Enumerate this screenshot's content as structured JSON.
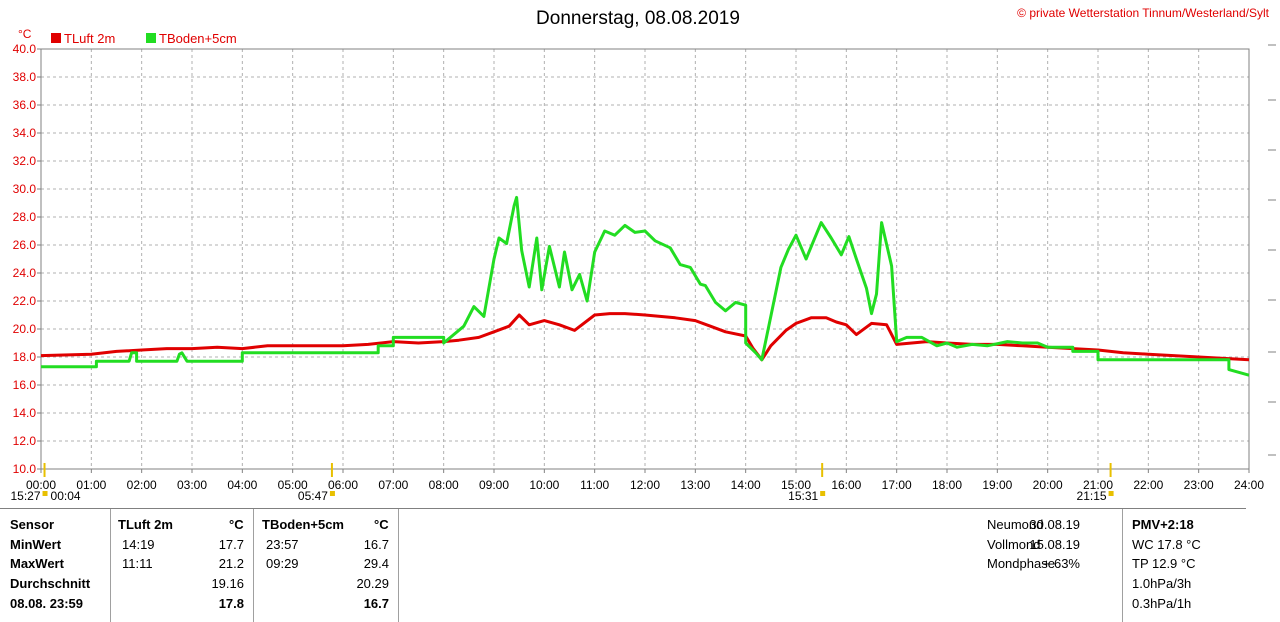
{
  "chart_data": {
    "type": "line",
    "title": "Donnerstag, 08.08.2019",
    "copyright": "© private Wetterstation Tinnum/Westerland/Sylt",
    "ylabel": "°C",
    "ylim": [
      10.0,
      40.0
    ],
    "yticks": [
      "10.0",
      "12.0",
      "14.0",
      "16.0",
      "18.0",
      "20.0",
      "22.0",
      "24.0",
      "26.0",
      "28.0",
      "30.0",
      "32.0",
      "34.0",
      "36.0",
      "38.0",
      "40.0"
    ],
    "xlim": [
      0,
      24
    ],
    "xticks": [
      "00:00",
      "01:00",
      "02:00",
      "03:00",
      "04:00",
      "05:00",
      "06:00",
      "07:00",
      "08:00",
      "09:00",
      "10:00",
      "11:00",
      "12:00",
      "13:00",
      "14:00",
      "15:00",
      "16:00",
      "17:00",
      "18:00",
      "19:00",
      "20:00",
      "21:00",
      "22:00",
      "23:00",
      "24:00"
    ],
    "grid": true,
    "legend_position": "top-left",
    "series": [
      {
        "name": "TLuft 2m",
        "color": "#e00000",
        "x": [
          0,
          1,
          1.5,
          2,
          2.5,
          3,
          3.5,
          4,
          4.5,
          5,
          5.5,
          6,
          6.5,
          7,
          7.5,
          8,
          8.3,
          8.7,
          9,
          9.3,
          9.5,
          9.7,
          10,
          10.3,
          10.6,
          11,
          11.3,
          11.6,
          12,
          12.3,
          12.6,
          13,
          13.3,
          13.6,
          14,
          14.15,
          14.32,
          14.5,
          14.8,
          15,
          15.3,
          15.6,
          15.8,
          16,
          16.2,
          16.5,
          16.8,
          17,
          17.3,
          17.6,
          18,
          18.5,
          19,
          19.5,
          20,
          20.5,
          21,
          21.5,
          22,
          22.5,
          23,
          23.5,
          24
        ],
        "y": [
          18.1,
          18.2,
          18.4,
          18.5,
          18.6,
          18.6,
          18.7,
          18.6,
          18.8,
          18.8,
          18.8,
          18.8,
          18.9,
          19.1,
          19.0,
          19.1,
          19.2,
          19.4,
          19.8,
          20.2,
          21.0,
          20.3,
          20.6,
          20.3,
          19.9,
          21.0,
          21.1,
          21.1,
          21.0,
          20.9,
          20.8,
          20.6,
          20.2,
          19.8,
          19.5,
          18.6,
          17.8,
          18.8,
          19.9,
          20.4,
          20.8,
          20.8,
          20.5,
          20.3,
          19.6,
          20.4,
          20.3,
          18.9,
          19.0,
          19.1,
          19.0,
          18.9,
          18.9,
          18.8,
          18.7,
          18.6,
          18.5,
          18.3,
          18.2,
          18.1,
          18.0,
          17.9,
          17.8
        ]
      },
      {
        "name": "TBoden+5cm",
        "color": "#22dd22",
        "x": [
          0,
          1.1,
          1.1,
          1.75,
          1.8,
          1.9,
          1.9,
          2.7,
          2.75,
          2.8,
          2.9,
          2.95,
          4.0,
          4.0,
          6.7,
          6.7,
          7.0,
          7.0,
          7.3,
          7.3,
          8.0,
          8.0,
          8.4,
          8.6,
          8.8,
          9.0,
          9.1,
          9.25,
          9.4,
          9.45,
          9.55,
          9.7,
          9.85,
          9.95,
          10.1,
          10.3,
          10.4,
          10.55,
          10.7,
          10.85,
          11.0,
          11.2,
          11.4,
          11.6,
          11.8,
          12.0,
          12.2,
          12.5,
          12.7,
          12.9,
          13.1,
          13.2,
          13.4,
          13.6,
          13.8,
          14.0,
          14.0,
          14.2,
          14.32,
          14.5,
          14.7,
          14.85,
          15.0,
          15.2,
          15.35,
          15.5,
          15.7,
          15.9,
          16.05,
          16.2,
          16.4,
          16.5,
          16.6,
          16.7,
          16.9,
          17.0,
          17.2,
          17.5,
          17.8,
          18.0,
          18.2,
          18.5,
          18.8,
          19.2,
          19.5,
          19.8,
          20.0,
          20.5,
          20.5,
          21.0,
          21.0,
          21.3,
          21.3,
          23.6,
          23.6,
          24.0
        ],
        "y": [
          17.3,
          17.3,
          17.7,
          17.7,
          18.3,
          18.3,
          17.7,
          17.7,
          18.2,
          18.3,
          17.7,
          17.7,
          17.7,
          18.3,
          18.3,
          18.8,
          18.8,
          19.4,
          19.4,
          19.4,
          19.4,
          19.0,
          20.2,
          21.6,
          20.9,
          25.0,
          26.5,
          26.1,
          28.8,
          29.4,
          25.6,
          23.0,
          26.5,
          22.8,
          25.9,
          23.0,
          25.5,
          22.8,
          23.9,
          22.0,
          25.5,
          27.0,
          26.7,
          27.4,
          26.9,
          27.0,
          26.3,
          25.8,
          24.6,
          24.4,
          23.2,
          23.1,
          21.9,
          21.3,
          21.9,
          21.7,
          19.0,
          18.3,
          17.8,
          20.9,
          24.4,
          25.7,
          26.7,
          25.0,
          26.3,
          27.6,
          26.5,
          25.3,
          26.6,
          25.0,
          22.9,
          21.1,
          22.5,
          27.6,
          24.5,
          19.1,
          19.4,
          19.4,
          18.8,
          19.0,
          18.7,
          18.9,
          18.8,
          19.1,
          19.0,
          19.0,
          18.7,
          18.7,
          18.4,
          18.4,
          17.8,
          17.8,
          17.8,
          17.8,
          17.1,
          16.7
        ]
      }
    ],
    "markers": [
      {
        "label": "15:27",
        "sub": "00:04",
        "x": 0.07
      },
      {
        "label": "05:47",
        "x": 5.78
      },
      {
        "label": "15:31",
        "x": 15.52
      },
      {
        "label": "21:15",
        "x": 21.25
      }
    ]
  },
  "table": {
    "headers": {
      "sensor": "Sensor",
      "col1": "TLuft 2m",
      "col1_unit": "°C",
      "col2": "TBoden+5cm",
      "col2_unit": "°C"
    },
    "rows": [
      {
        "label": "MinWert",
        "t1": "14:19",
        "v1": "17.7",
        "t2": "23:57",
        "v2": "16.7"
      },
      {
        "label": "MaxWert",
        "t1": "11:11",
        "v1": "21.2",
        "t2": "09:29",
        "v2": "29.4"
      },
      {
        "label": "Durchschnitt",
        "t1": "",
        "v1": "19.16",
        "t2": "",
        "v2": "20.29"
      },
      {
        "label": "08.08. 23:59",
        "t1": "",
        "v1": "17.8",
        "t2": "",
        "v2": "16.7"
      }
    ],
    "moon": [
      {
        "label": "Neumond",
        "value": "30.08.19"
      },
      {
        "label": "Vollmond",
        "value": "15.08.19"
      },
      {
        "label": "Mondphase",
        "value": "+ 63%"
      }
    ],
    "extra": {
      "pmv": "PMV+2:18",
      "wc": "WC 17.8 °C",
      "tp": "TP 12.9 °C",
      "p3h": "1.0hPa/3h",
      "p1h": "0.3hPa/1h"
    }
  }
}
